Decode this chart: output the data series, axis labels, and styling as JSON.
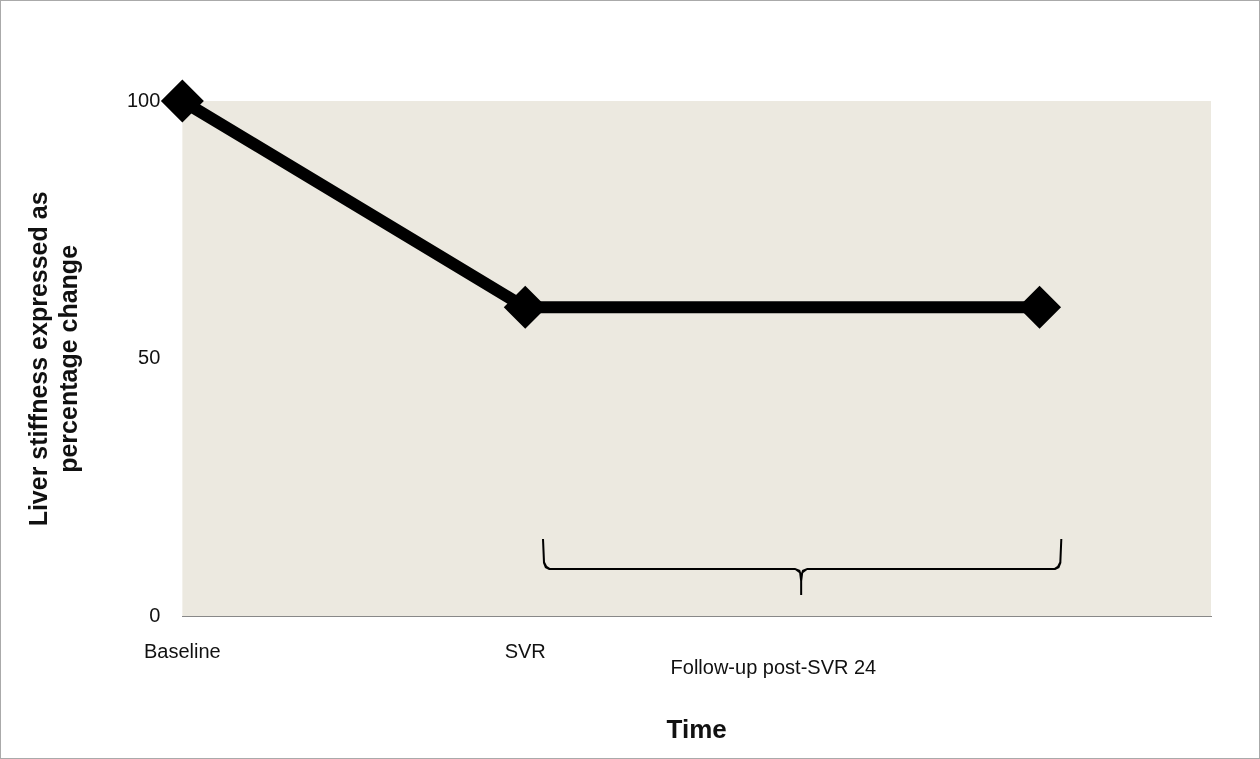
{
  "chart_data": {
    "type": "line",
    "xlabel": "Time",
    "ylabel": "Liver stiffness expressed as percentage change",
    "categories": [
      "Baseline",
      null,
      "SVR",
      null,
      null,
      null,
      null
    ],
    "series": [
      {
        "color": "#000000",
        "values": [
          100,
          null,
          60,
          null,
          null,
          60,
          null
        ]
      }
    ],
    "ylim": [
      0,
      100
    ],
    "yticks": [
      0,
      50,
      100
    ],
    "grid": false,
    "legend": false,
    "marker": "diamond",
    "line_style": "solid",
    "annotations": [
      "Follow-up post-SVR 24"
    ]
  }
}
